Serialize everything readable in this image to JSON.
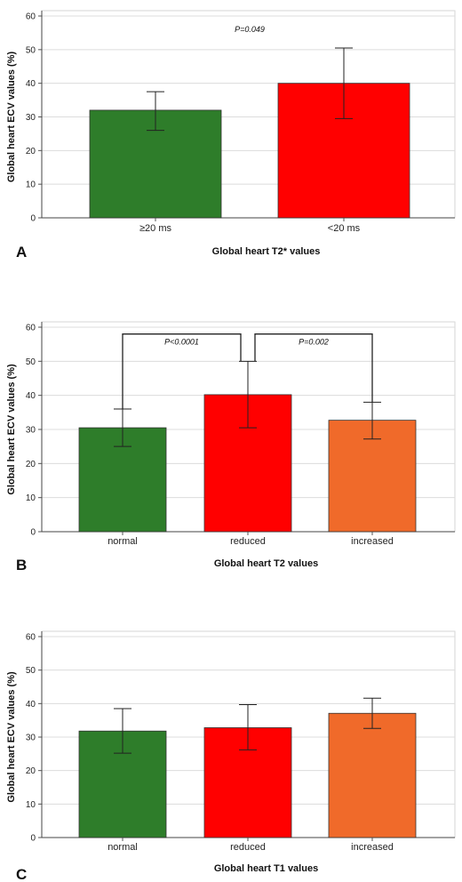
{
  "chart_data": [
    {
      "type": "bar",
      "panel_label": "A",
      "categories": [
        "≥20 ms",
        "<20 ms"
      ],
      "values": [
        32,
        40
      ],
      "error_low": [
        26,
        29.5
      ],
      "error_high": [
        37.5,
        50.5
      ],
      "colors": [
        "#2e7d2a",
        "#ff0000"
      ],
      "xlabel": "Global heart T2* values",
      "ylabel": "Global heart ECV values (%)",
      "ylim": [
        0,
        60
      ],
      "yticks": [
        0,
        10,
        20,
        30,
        40,
        50,
        60
      ],
      "grid": true,
      "annotations": [
        {
          "text": "P=0.049",
          "between": [
            0,
            1
          ],
          "bracket": false
        }
      ]
    },
    {
      "type": "bar",
      "panel_label": "B",
      "categories": [
        "normal",
        "reduced",
        "increased"
      ],
      "values": [
        30.5,
        40.2,
        32.7
      ],
      "error_low": [
        25,
        30.5,
        27.2
      ],
      "error_high": [
        36,
        50,
        38
      ],
      "colors": [
        "#2e7d2a",
        "#ff0000",
        "#f06a2a"
      ],
      "xlabel": "Global heart T2 values",
      "ylabel": "Global heart ECV values (%)",
      "ylim": [
        0,
        60
      ],
      "yticks": [
        0,
        10,
        20,
        30,
        40,
        50,
        60
      ],
      "grid": true,
      "annotations": [
        {
          "text": "P<0.0001",
          "between": [
            0,
            1
          ],
          "bracket": true,
          "level": 58
        },
        {
          "text": "P=0.002",
          "between": [
            1,
            2
          ],
          "bracket": true,
          "level": 58
        }
      ]
    },
    {
      "type": "bar",
      "panel_label": "C",
      "categories": [
        "normal",
        "reduced",
        "increased"
      ],
      "values": [
        31.8,
        32.8,
        37.1
      ],
      "error_low": [
        25.2,
        26.2,
        32.6
      ],
      "error_high": [
        38.5,
        39.7,
        41.6
      ],
      "colors": [
        "#2e7d2a",
        "#ff0000",
        "#f06a2a"
      ],
      "xlabel": "Global heart T1 values",
      "ylabel": "Global heart ECV values (%)",
      "ylim": [
        0,
        60
      ],
      "yticks": [
        0,
        10,
        20,
        30,
        40,
        50,
        60
      ],
      "grid": true,
      "annotations": []
    }
  ]
}
